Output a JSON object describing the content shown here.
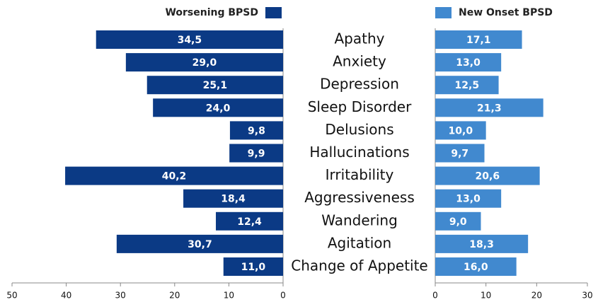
{
  "chart_data": {
    "type": "bar",
    "categories": [
      "Apathy",
      "Anxiety",
      "Depression",
      "Sleep Disorder",
      "Delusions",
      "Hallucinations",
      "Irritability",
      "Aggressiveness",
      "Wandering",
      "Agitation",
      "Change of Appetite"
    ],
    "series": [
      {
        "name": "Worsening BPSD",
        "color": "#0b3a85",
        "values": [
          34.5,
          29.0,
          25.1,
          24.0,
          9.8,
          9.9,
          40.2,
          18.4,
          12.4,
          30.7,
          11.0
        ],
        "value_labels": [
          "34,5",
          "29,0",
          "25,1",
          "24,0",
          "9,8",
          "9,9",
          "40,2",
          "18,4",
          "12,4",
          "30,7",
          "11,0"
        ],
        "xlim": [
          50,
          0
        ],
        "xticks": [
          50,
          40,
          30,
          20,
          10,
          0
        ]
      },
      {
        "name": "New Onset BPSD",
        "color": "#4189cf",
        "values": [
          17.1,
          13.0,
          12.5,
          21.3,
          10.0,
          9.7,
          20.6,
          13.0,
          9.0,
          18.3,
          16.0
        ],
        "value_labels": [
          "17,1",
          "13,0",
          "12,5",
          "21,3",
          "10,0",
          "9,7",
          "20,6",
          "13,0",
          "9,0",
          "18,3",
          "16,0"
        ],
        "xlim": [
          0,
          30
        ],
        "xticks": [
          0,
          10,
          20,
          30
        ]
      }
    ]
  }
}
